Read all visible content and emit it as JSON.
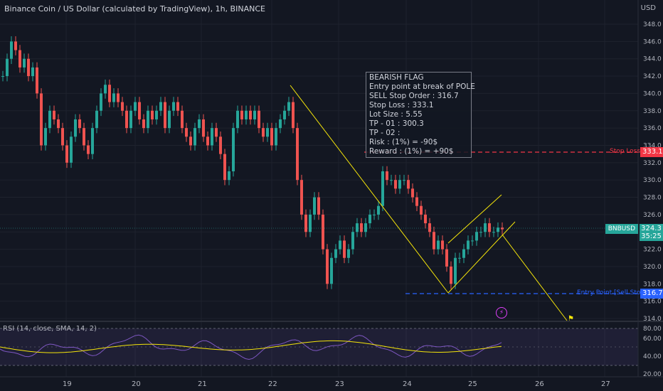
{
  "header": {
    "title": "Binance Coin / US Dollar (calculated by TradingView), 1h, BINANCE",
    "currency": "USD"
  },
  "price_axis": {
    "ticks": [
      "348.0",
      "346.0",
      "344.0",
      "342.0",
      "340.0",
      "338.0",
      "336.0",
      "334.0",
      "332.0",
      "330.0",
      "328.0",
      "326.0",
      "324.0",
      "322.0",
      "320.0",
      "318.0",
      "316.0",
      "314.0"
    ]
  },
  "rsi_axis": {
    "ticks": [
      "80.00",
      "60.00",
      "40.00",
      "20.00"
    ]
  },
  "time_axis": {
    "ticks": [
      "19",
      "20",
      "21",
      "22",
      "23",
      "24",
      "25",
      "26",
      "27"
    ]
  },
  "tags": {
    "stop_loss_label": "Stop Loss",
    "stop_loss_value": "333.1",
    "entry_label": "Entry Point [Sell Stop]",
    "entry_value": "316.7",
    "symbol": "BNBUSD",
    "last_price": "324.3",
    "countdown": "35:25"
  },
  "annotation": {
    "lines": [
      "BEARISH FLAG",
      "Entry point at break of POLE",
      "SELL Stop Order : 316.7",
      "Stop Loss : 333.1",
      "Lot Size : 5.55",
      "TP - 01 : 300.3",
      "TP - 02 :",
      "Risk : (1%) = -90$",
      "Reward : (1%) = +90$"
    ]
  },
  "rsi": {
    "label": "RSI (14, close, SMA, 14, 2)"
  },
  "colors": {
    "up": "#26a69a",
    "down": "#ef5350",
    "stop": "#f23645",
    "entry": "#2962ff",
    "trend": "#f5e50a",
    "rsi_line": "#7e57c2",
    "rsi_ma": "#f5e50a"
  }
}
